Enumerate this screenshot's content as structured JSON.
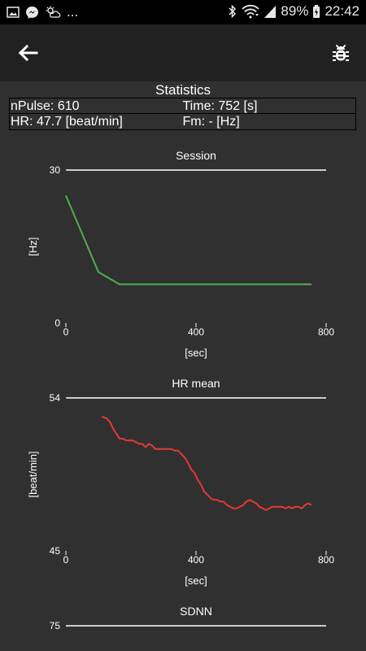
{
  "status_bar": {
    "left_icons": [
      "image-icon",
      "messenger-icon",
      "weather-icon"
    ],
    "ellipsis": "...",
    "battery": "89%",
    "time": "22:42"
  },
  "colors": {
    "session_line": "#4caf50",
    "hr_line": "#e53935",
    "background": "#303030",
    "appbar": "#212121"
  },
  "statistics": {
    "title": "Statistics",
    "npulse": "nPulse: 610",
    "time": "Time: 752 [s]",
    "hr": "HR: 47.7 [beat/min]",
    "fm": "Fm: - [Hz]"
  },
  "chart_data": [
    {
      "type": "line",
      "title": "Session",
      "xlabel": "[sec]",
      "ylabel": "[Hz]",
      "xlim": [
        0,
        800
      ],
      "ylim": [
        0,
        30
      ],
      "xticks": [
        "0",
        "400",
        "800"
      ],
      "yticks": [
        "0",
        "30"
      ],
      "series": [
        {
          "x": [
            0,
            100,
            165,
            755
          ],
          "y": [
            25,
            10,
            7.6,
            7.6
          ]
        }
      ]
    },
    {
      "type": "line",
      "title": "HR mean",
      "xlabel": "[sec]",
      "ylabel": "[beat/min]",
      "xlim": [
        0,
        800
      ],
      "ylim": [
        45,
        54
      ],
      "xticks": [
        "0",
        "400",
        "800"
      ],
      "yticks": [
        "45",
        "54"
      ],
      "series": [
        {
          "x": [
            110,
            125,
            135,
            145,
            155,
            165,
            175,
            185,
            195,
            205,
            215,
            225,
            235,
            245,
            255,
            265,
            275,
            285,
            295,
            305,
            315,
            325,
            335,
            345,
            355,
            365,
            375,
            385,
            395,
            405,
            415,
            425,
            435,
            445,
            455,
            465,
            475,
            485,
            495,
            505,
            515,
            525,
            535,
            545,
            555,
            565,
            575,
            585,
            595,
            605,
            615,
            625,
            635,
            645,
            655,
            665,
            675,
            685,
            695,
            705,
            715,
            725,
            735,
            745,
            755
          ],
          "y": [
            52.9,
            52.8,
            52.6,
            52.2,
            51.9,
            51.6,
            51.6,
            51.5,
            51.5,
            51.5,
            51.4,
            51.3,
            51.3,
            51.1,
            51.3,
            51.2,
            51.0,
            51.0,
            51.0,
            51.0,
            51.0,
            51.0,
            50.9,
            50.9,
            50.7,
            50.5,
            50.2,
            49.8,
            49.6,
            49.2,
            48.9,
            48.5,
            48.3,
            48.1,
            48.0,
            48.0,
            47.9,
            47.9,
            47.7,
            47.6,
            47.5,
            47.5,
            47.6,
            47.7,
            47.9,
            48.0,
            47.9,
            47.8,
            47.6,
            47.5,
            47.4,
            47.5,
            47.6,
            47.6,
            47.6,
            47.6,
            47.5,
            47.6,
            47.5,
            47.6,
            47.6,
            47.5,
            47.7,
            47.8,
            47.7
          ]
        }
      ]
    },
    {
      "type": "line",
      "title": "SDNN",
      "xlabel": "",
      "ylabel": "",
      "xlim": [
        0,
        800
      ],
      "ylim": [
        0,
        75
      ],
      "yticks": [
        "75"
      ],
      "series": []
    }
  ]
}
